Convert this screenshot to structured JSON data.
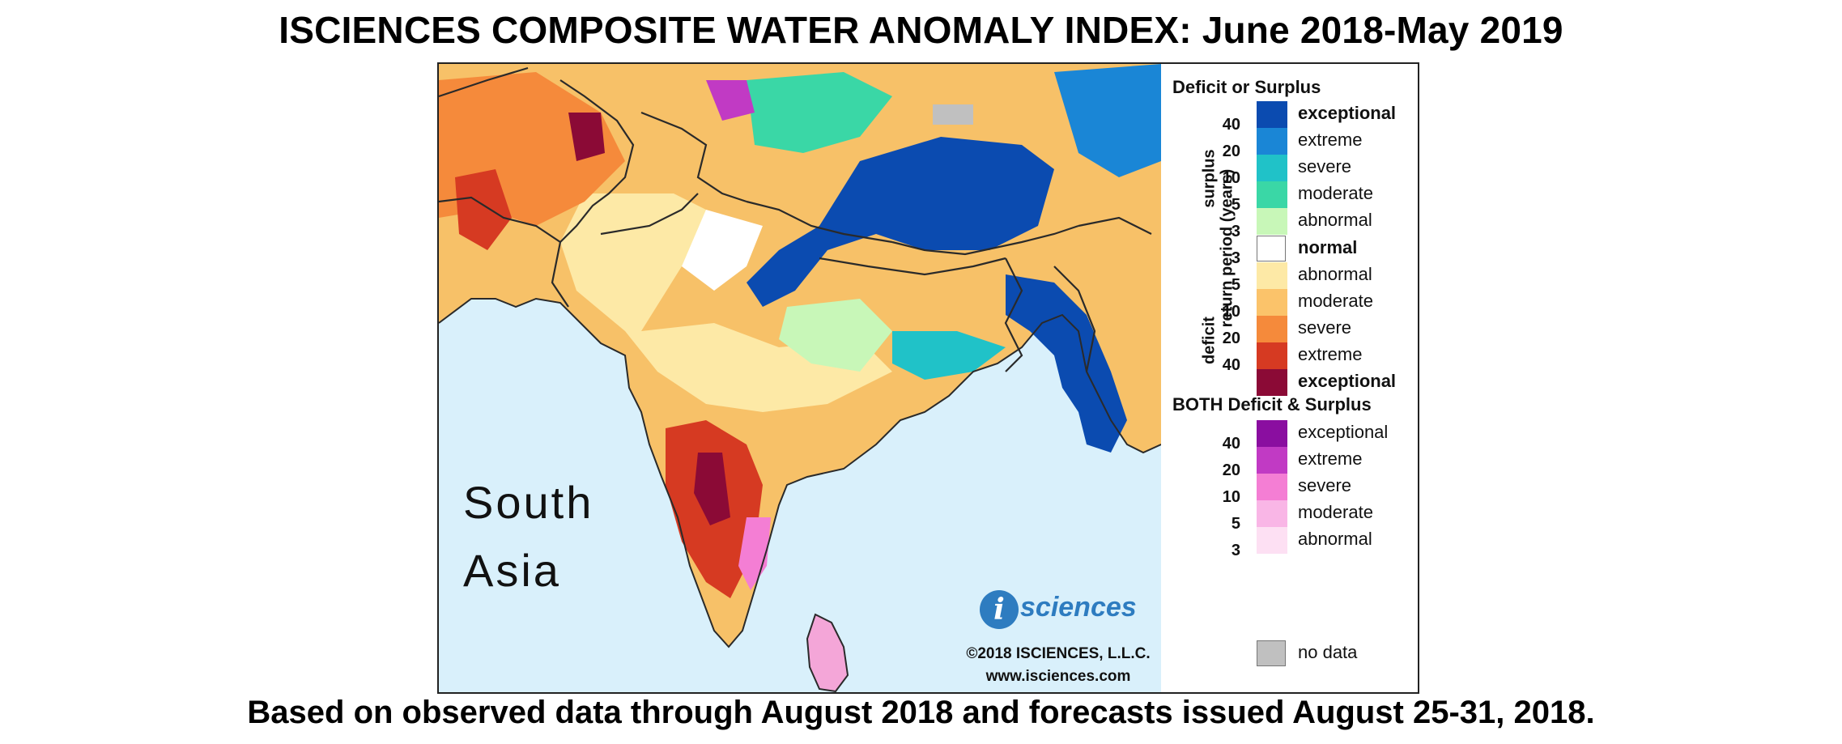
{
  "title": "ISCIENCES COMPOSITE WATER ANOMALY INDEX: June 2018-May 2019",
  "footer": "Based on observed data through August 2018 and forecasts issued August 25-31, 2018.",
  "map": {
    "region_label_line1": "South",
    "region_label_line2": "Asia",
    "logo_i": "i",
    "logo_text": "sciences",
    "copyright": "©2018 ISCIENCES, L.L.C.",
    "url": "www.isciences.com"
  },
  "legend": {
    "heading1": "Deficit or Surplus",
    "axis_title": "return period (years)",
    "surplus_label": "surplus",
    "deficit_label": "deficit",
    "surplus_items": [
      {
        "label": "exceptional",
        "color": "#0b4bb0"
      },
      {
        "label": "extreme",
        "color": "#1a86d6"
      },
      {
        "label": "severe",
        "color": "#20c2c8"
      },
      {
        "label": "moderate",
        "color": "#3ad7a6"
      },
      {
        "label": "abnormal",
        "color": "#c8f7b8"
      }
    ],
    "surplus_numbers": [
      "40",
      "20",
      "10",
      "5",
      "3"
    ],
    "normal_label": "normal",
    "normal_color": "#ffffff",
    "deficit_numbers": [
      "3",
      "5",
      "10",
      "20",
      "40"
    ],
    "deficit_items": [
      {
        "label": "abnormal",
        "color": "#fde9a6"
      },
      {
        "label": "moderate",
        "color": "#fbc36a"
      },
      {
        "label": "severe",
        "color": "#f58a3b"
      },
      {
        "label": "extreme",
        "color": "#d63a22"
      },
      {
        "label": "exceptional",
        "color": "#8b0a36"
      }
    ],
    "heading2": "BOTH Deficit & Surplus",
    "both_items": [
      {
        "label": "exceptional",
        "color": "#8a0ea0"
      },
      {
        "label": "extreme",
        "color": "#c13ac4"
      },
      {
        "label": "severe",
        "color": "#f47ed4"
      },
      {
        "label": "moderate",
        "color": "#f9b6e6"
      },
      {
        "label": "abnormal",
        "color": "#fde0f3"
      }
    ],
    "both_numbers": [
      "40",
      "20",
      "10",
      "5",
      "3"
    ],
    "nodata_label": "no data",
    "nodata_color": "#c0c0c0"
  }
}
